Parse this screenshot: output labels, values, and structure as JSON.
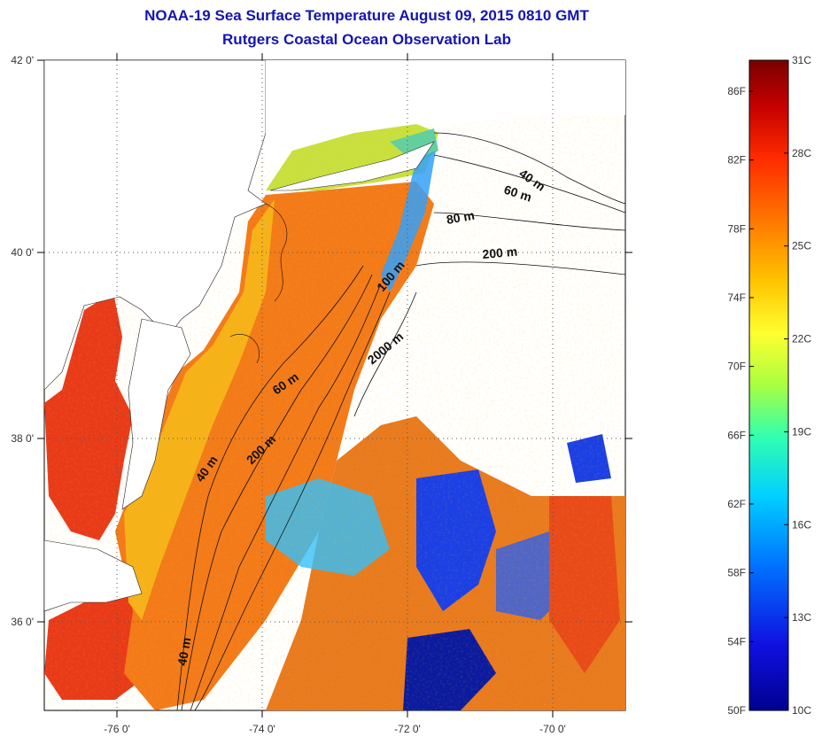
{
  "title": "NOAA-19 Sea Surface Temperature August 09, 2015 0810 GMT",
  "subtitle": "Rutgers Coastal Ocean Observation Lab",
  "axes": {
    "lon_ticks": [
      "-76 0'",
      "-74 0'",
      "-72 0'",
      "-70 0'"
    ],
    "lat_ticks": [
      "42 0'",
      "40 0'",
      "38 0'",
      "36 0'"
    ]
  },
  "contour_labels": [
    "40 m",
    "60 m",
    "80 m",
    "200 m",
    "100 m",
    "2000 m",
    "60 m",
    "200 m",
    "40 m",
    "40 m"
  ],
  "colorbar": {
    "fahrenheit_labels": [
      "86F",
      "82F",
      "78F",
      "74F",
      "70F",
      "66F",
      "62F",
      "58F",
      "54F",
      "50F"
    ],
    "celsius_labels": [
      "31C",
      "28C",
      "25C",
      "22C",
      "19C",
      "16C",
      "13C",
      "10C"
    ],
    "colors": [
      "#7a0000",
      "#c40000",
      "#ff2a00",
      "#ff7a00",
      "#ffc400",
      "#ffff30",
      "#a8ff40",
      "#30ffb0",
      "#00d0ff",
      "#0070ff",
      "#1010e0",
      "#000090"
    ]
  },
  "palette": {
    "warm": "#f37a1a",
    "hot": "#e83a1a",
    "yellow": "#f6d21a",
    "green": "#9ee040",
    "cyan": "#30c0ff",
    "blue": "#1a3fe6",
    "navy": "#0a1aa0"
  }
}
